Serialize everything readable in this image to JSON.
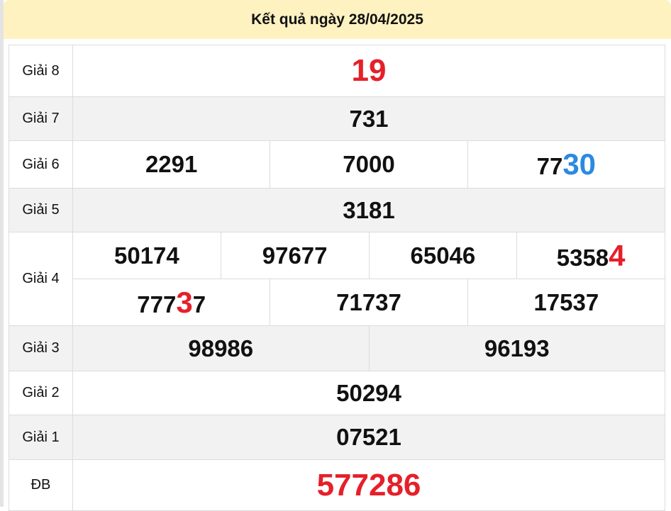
{
  "header": {
    "title": "Kết quả ngày 28/04/2025"
  },
  "colors": {
    "header_bg": "#fff2c1",
    "highlight_red": "#e5202a",
    "highlight_blue": "#2b8ae0",
    "alt_row": "#f2f2f2"
  },
  "prizes": {
    "g8": {
      "label": "Giải 8",
      "numbers": [
        "19"
      ]
    },
    "g7": {
      "label": "Giải 7",
      "numbers": [
        "731"
      ]
    },
    "g6": {
      "label": "Giải 6",
      "numbers": [
        "2291",
        "7000",
        {
          "plain": "77",
          "highlight": "30"
        }
      ]
    },
    "g5": {
      "label": "Giải 5",
      "numbers": [
        "3181"
      ]
    },
    "g4": {
      "label": "Giải 4",
      "numbers": [
        "50174",
        "97677",
        "65046",
        {
          "plain": "5358",
          "highlight": "4"
        },
        {
          "plain": "777",
          "highlight": "3",
          "rest": "7"
        },
        "71737",
        "17537"
      ]
    },
    "g3": {
      "label": "Giải 3",
      "numbers": [
        "98986",
        "96193"
      ]
    },
    "g2": {
      "label": "Giải 2",
      "numbers": [
        "50294"
      ]
    },
    "g1": {
      "label": "Giải 1",
      "numbers": [
        "07521"
      ]
    },
    "db": {
      "label": "ĐB",
      "numbers": [
        "577286"
      ]
    }
  }
}
